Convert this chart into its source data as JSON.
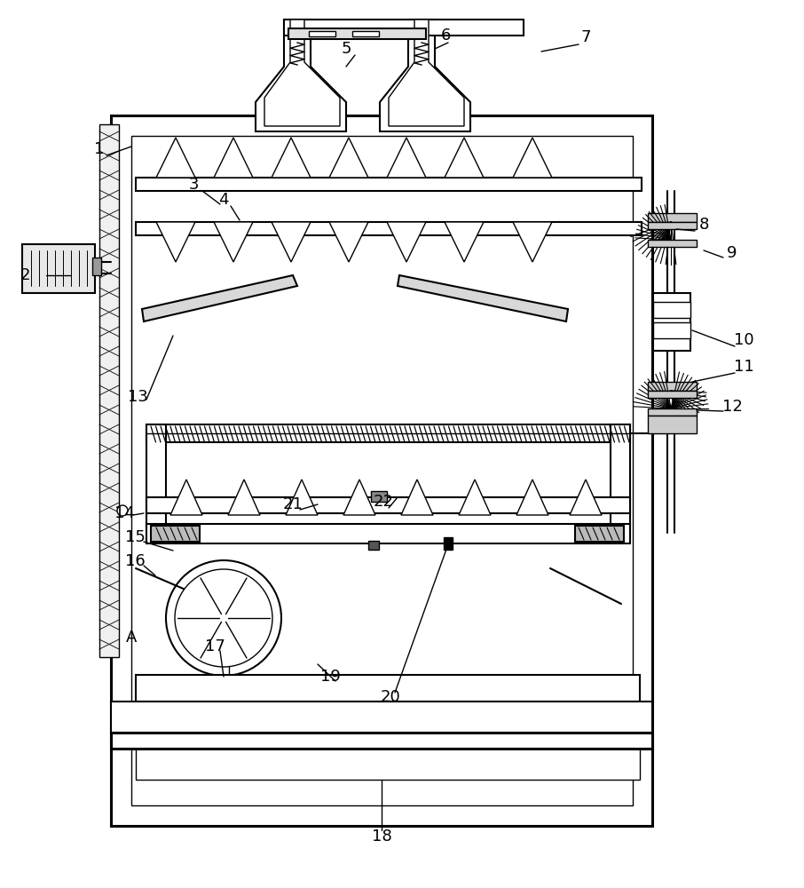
{
  "bg_color": "#ffffff",
  "lc": "#000000"
}
